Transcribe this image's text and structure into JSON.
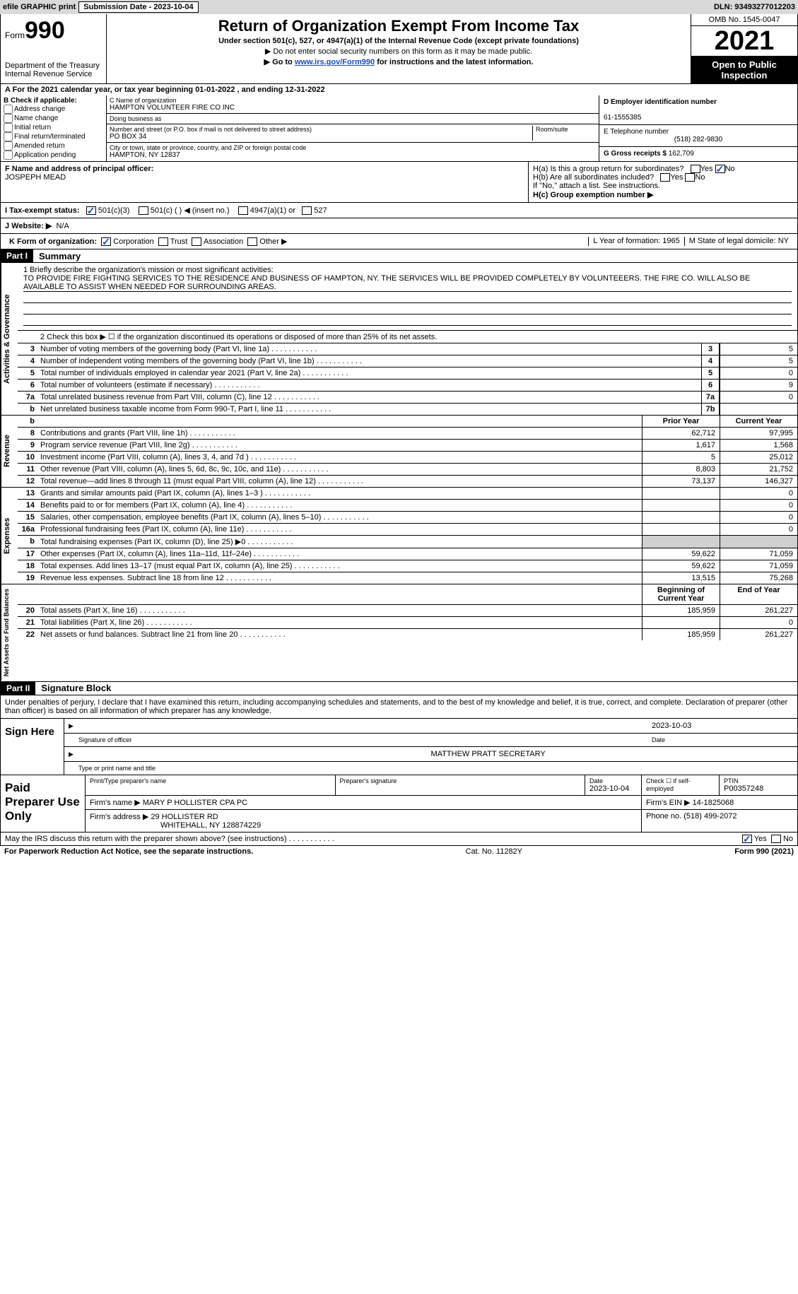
{
  "topbar": {
    "efile": "efile GRAPHIC print",
    "subdate_label": "Submission Date - 2023-10-04",
    "dln": "DLN: 93493277012203"
  },
  "header": {
    "form_word": "Form",
    "form_num": "990",
    "dept": "Department of the Treasury\nInternal Revenue Service",
    "title": "Return of Organization Exempt From Income Tax",
    "sub1": "Under section 501(c), 527, or 4947(a)(1) of the Internal Revenue Code (except private foundations)",
    "sub2": "▶ Do not enter social security numbers on this form as it may be made public.",
    "sub3_pre": "▶ Go to ",
    "sub3_link": "www.irs.gov/Form990",
    "sub3_post": " for instructions and the latest information.",
    "omb": "OMB No. 1545-0047",
    "year": "2021",
    "openpub": "Open to Public Inspection"
  },
  "lineA": "A For the 2021 calendar year, or tax year beginning 01-01-2022   , and ending 12-31-2022",
  "b": {
    "label": "B Check if applicable:",
    "items": [
      "Address change",
      "Name change",
      "Initial return",
      "Final return/terminated",
      "Amended return",
      "Application pending"
    ]
  },
  "c": {
    "name_lbl": "C Name of organization",
    "name": "HAMPTON VOLUNTEER FIRE CO INC",
    "dba_lbl": "Doing business as",
    "dba": "",
    "street_lbl": "Number and street (or P.O. box if mail is not delivered to street address)",
    "room_lbl": "Room/suite",
    "street": "PO BOX 34",
    "city_lbl": "City or town, state or province, country, and ZIP or foreign postal code",
    "city": "HAMPTON, NY  12837"
  },
  "d": {
    "ein_lbl": "D Employer identification number",
    "ein": "61-1555385",
    "tel_lbl": "E Telephone number",
    "tel": "(518) 282-9830",
    "gross_lbl": "G Gross receipts $",
    "gross": "162,709"
  },
  "f": {
    "lbl": "F Name and address of principal officer:",
    "name": "JOSPEPH MEAD"
  },
  "h": {
    "a": "H(a)  Is this a group return for subordinates?",
    "b": "H(b)  Are all subordinates included?",
    "note": "If \"No,\" attach a list. See instructions.",
    "c": "H(c)  Group exemption number ▶",
    "yes": "Yes",
    "no": "No"
  },
  "i": {
    "lbl": "I   Tax-exempt status:",
    "o1": "501(c)(3)",
    "o2": "501(c) (  ) ◀ (insert no.)",
    "o3": "4947(a)(1) or",
    "o4": "527"
  },
  "j": {
    "lbl": "J   Website: ▶",
    "val": "N/A"
  },
  "k": {
    "lbl": "K Form of organization:",
    "o1": "Corporation",
    "o2": "Trust",
    "o3": "Association",
    "o4": "Other ▶",
    "l": "L Year of formation: 1965",
    "m": "M State of legal domicile: NY"
  },
  "part1": {
    "hdr": "Part I",
    "title": "Summary"
  },
  "mission": {
    "lbl": "1   Briefly describe the organization's mission or most significant activities:",
    "text": "TO PROVIDE FIRE FIGHTING SERVICES TO THE RESIDENCE AND BUSINESS OF HAMPTON, NY. THE SERVICES WILL BE PROVIDED COMPLETELY BY VOLUNTEEERS. THE FIRE CO. WILL ALSO BE AVAILABLE TO ASSIST WHEN NEEDED FOR SURROUNDING AREAS."
  },
  "line2": "2   Check this box ▶ ☐ if the organization discontinued its operations or disposed of more than 25% of its net assets.",
  "gov": [
    {
      "n": "3",
      "d": "Number of voting members of the governing body (Part VI, line 1a)",
      "b": "3",
      "v": "5"
    },
    {
      "n": "4",
      "d": "Number of independent voting members of the governing body (Part VI, line 1b)",
      "b": "4",
      "v": "5"
    },
    {
      "n": "5",
      "d": "Total number of individuals employed in calendar year 2021 (Part V, line 2a)",
      "b": "5",
      "v": "0"
    },
    {
      "n": "6",
      "d": "Total number of volunteers (estimate if necessary)",
      "b": "6",
      "v": "9"
    },
    {
      "n": "7a",
      "d": "Total unrelated business revenue from Part VIII, column (C), line 12",
      "b": "7a",
      "v": "0"
    },
    {
      "n": "b",
      "d": "Net unrelated business taxable income from Form 990-T, Part I, line 11",
      "b": "7b",
      "v": ""
    }
  ],
  "cols": {
    "prior": "Prior Year",
    "current": "Current Year",
    "begin": "Beginning of Current Year",
    "end": "End of Year"
  },
  "rev": [
    {
      "n": "8",
      "d": "Contributions and grants (Part VIII, line 1h)",
      "p": "62,712",
      "c": "97,995"
    },
    {
      "n": "9",
      "d": "Program service revenue (Part VIII, line 2g)",
      "p": "1,617",
      "c": "1,568"
    },
    {
      "n": "10",
      "d": "Investment income (Part VIII, column (A), lines 3, 4, and 7d )",
      "p": "5",
      "c": "25,012"
    },
    {
      "n": "11",
      "d": "Other revenue (Part VIII, column (A), lines 5, 6d, 8c, 9c, 10c, and 11e)",
      "p": "8,803",
      "c": "21,752"
    },
    {
      "n": "12",
      "d": "Total revenue—add lines 8 through 11 (must equal Part VIII, column (A), line 12)",
      "p": "73,137",
      "c": "146,327"
    }
  ],
  "exp": [
    {
      "n": "13",
      "d": "Grants and similar amounts paid (Part IX, column (A), lines 1–3 )",
      "p": "",
      "c": "0"
    },
    {
      "n": "14",
      "d": "Benefits paid to or for members (Part IX, column (A), line 4)",
      "p": "",
      "c": "0"
    },
    {
      "n": "15",
      "d": "Salaries, other compensation, employee benefits (Part IX, column (A), lines 5–10)",
      "p": "",
      "c": "0"
    },
    {
      "n": "16a",
      "d": "Professional fundraising fees (Part IX, column (A), line 11e)",
      "p": "",
      "c": "0"
    },
    {
      "n": "b",
      "d": "Total fundraising expenses (Part IX, column (D), line 25) ▶0",
      "p": "shade",
      "c": "shade"
    },
    {
      "n": "17",
      "d": "Other expenses (Part IX, column (A), lines 11a–11d, 11f–24e)",
      "p": "59,622",
      "c": "71,059"
    },
    {
      "n": "18",
      "d": "Total expenses. Add lines 13–17 (must equal Part IX, column (A), line 25)",
      "p": "59,622",
      "c": "71,059"
    },
    {
      "n": "19",
      "d": "Revenue less expenses. Subtract line 18 from line 12",
      "p": "13,515",
      "c": "75,268"
    }
  ],
  "net": [
    {
      "n": "20",
      "d": "Total assets (Part X, line 16)",
      "p": "185,959",
      "c": "261,227"
    },
    {
      "n": "21",
      "d": "Total liabilities (Part X, line 26)",
      "p": "",
      "c": "0"
    },
    {
      "n": "22",
      "d": "Net assets or fund balances. Subtract line 21 from line 20",
      "p": "185,959",
      "c": "261,227"
    }
  ],
  "part2": {
    "hdr": "Part II",
    "title": "Signature Block"
  },
  "decl": "Under penalties of perjury, I declare that I have examined this return, including accompanying schedules and statements, and to the best of my knowledge and belief, it is true, correct, and complete. Declaration of preparer (other than officer) is based on all information of which preparer has any knowledge.",
  "sign": {
    "side": "Sign Here",
    "sig_lbl": "Signature of officer",
    "date": "2023-10-03",
    "date_lbl": "Date",
    "name": "MATTHEW PRATT  SECRETARY",
    "name_lbl": "Type or print name and title"
  },
  "paid": {
    "side": "Paid Preparer Use Only",
    "h1": "Print/Type preparer's name",
    "h2": "Preparer's signature",
    "h3": "Date",
    "h3v": "2023-10-04",
    "h4": "Check ☐ if self-employed",
    "h5": "PTIN",
    "h5v": "P00357248",
    "firm_lbl": "Firm's name    ▶",
    "firm": "MARY P HOLLISTER CPA PC",
    "ein_lbl": "Firm's EIN ▶",
    "ein": "14-1825068",
    "addr_lbl": "Firm's address ▶",
    "addr1": "29 HOLLISTER RD",
    "addr2": "WHITEHALL, NY  128874229",
    "phone_lbl": "Phone no.",
    "phone": "(518) 499-2072"
  },
  "discuss": "May the IRS discuss this return with the preparer shown above? (see instructions)",
  "footer": {
    "l": "For Paperwork Reduction Act Notice, see the separate instructions.",
    "c": "Cat. No. 11282Y",
    "r": "Form 990 (2021)"
  },
  "sidelabels": {
    "gov": "Activities & Governance",
    "rev": "Revenue",
    "exp": "Expenses",
    "net": "Net Assets or Fund Balances"
  }
}
